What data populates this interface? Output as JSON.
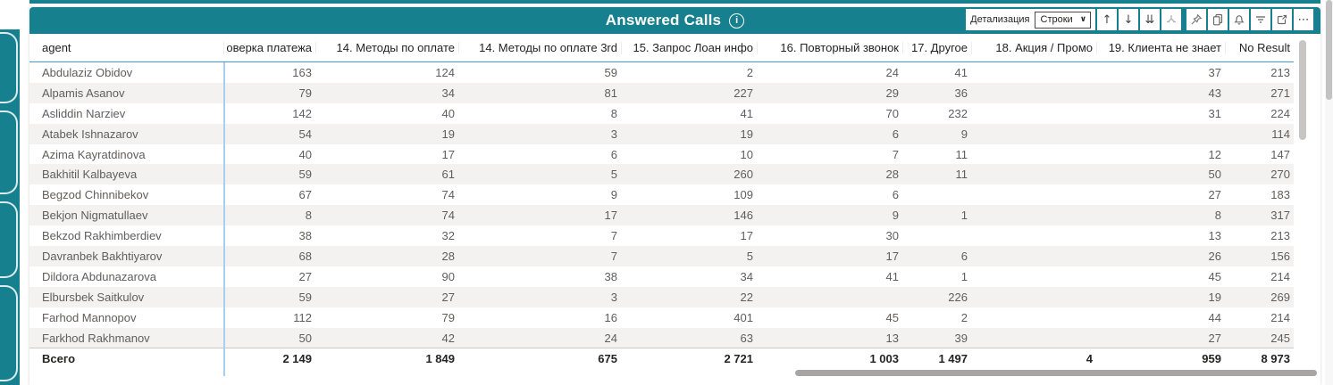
{
  "colors": {
    "teal": "#17808E",
    "header_underline_blue": "#3D9BDC",
    "frozen_column_divider_blue": "#A9CFEC",
    "alt_row": "#F3F2F1"
  },
  "header": {
    "title": "Answered Calls",
    "info_icon": "i",
    "toolbar": {
      "detail_label": "Детализация",
      "detail_value": "Строки",
      "caret": "∨",
      "icons": {
        "drill_up": "↑",
        "drill_down": "↓",
        "drill_next": "⇊",
        "more": "⋯"
      }
    }
  },
  "table": {
    "columns": [
      "agent",
      "оверка платежа",
      "14. Методы по оплате",
      "14. Методы по оплате 3rd",
      "15. Запрос Лоан инфо",
      "16. Повторный звонок",
      "17. Другое",
      "18. Акция / Промо",
      "19. Клиента не знает",
      "No Result"
    ],
    "rows": [
      {
        "agent": "Abdulaziz Obidov",
        "values": [
          "163",
          "124",
          "59",
          "2",
          "24",
          "41",
          "",
          "37",
          "213"
        ]
      },
      {
        "agent": "Alpamis Asanov",
        "values": [
          "79",
          "34",
          "81",
          "227",
          "29",
          "36",
          "",
          "43",
          "271"
        ]
      },
      {
        "agent": "Asliddin Narziev",
        "values": [
          "142",
          "40",
          "8",
          "41",
          "70",
          "232",
          "",
          "31",
          "224"
        ]
      },
      {
        "agent": "Atabek Ishnazarov",
        "values": [
          "54",
          "19",
          "3",
          "19",
          "6",
          "9",
          "",
          "",
          "114"
        ]
      },
      {
        "agent": "Azima Kayratdinova",
        "values": [
          "40",
          "17",
          "6",
          "10",
          "7",
          "11",
          "",
          "12",
          "147"
        ]
      },
      {
        "agent": "Bakhitil Kalbayeva",
        "values": [
          "59",
          "61",
          "5",
          "260",
          "28",
          "11",
          "",
          "50",
          "270"
        ]
      },
      {
        "agent": "Begzod Chinnibekov",
        "values": [
          "67",
          "74",
          "9",
          "109",
          "6",
          "",
          "",
          "27",
          "183"
        ]
      },
      {
        "agent": "Bekjon Nigmatullaev",
        "values": [
          "8",
          "74",
          "17",
          "146",
          "9",
          "1",
          "",
          "8",
          "317"
        ]
      },
      {
        "agent": "Bekzod Rakhimberdiev",
        "values": [
          "38",
          "32",
          "7",
          "17",
          "30",
          "",
          "",
          "13",
          "213"
        ]
      },
      {
        "agent": "Davranbek Bakhtiyarov",
        "values": [
          "68",
          "28",
          "7",
          "5",
          "17",
          "6",
          "",
          "26",
          "156"
        ]
      },
      {
        "agent": "Dildora Abdunazarova",
        "values": [
          "27",
          "90",
          "38",
          "34",
          "41",
          "1",
          "",
          "45",
          "214"
        ]
      },
      {
        "agent": "Elbursbek Saitkulov",
        "values": [
          "59",
          "27",
          "3",
          "22",
          "",
          "226",
          "",
          "19",
          "269"
        ]
      },
      {
        "agent": "Farhod Mannopov",
        "values": [
          "112",
          "79",
          "16",
          "401",
          "45",
          "2",
          "",
          "44",
          "214"
        ]
      },
      {
        "agent": "Farkhod Rakhmanov",
        "values": [
          "50",
          "42",
          "24",
          "63",
          "13",
          "39",
          "",
          "27",
          "245"
        ]
      }
    ],
    "total": {
      "label": "Всего",
      "values": [
        "2 149",
        "1 849",
        "675",
        "2 721",
        "1 003",
        "1 497",
        "4",
        "959",
        "8 973"
      ]
    }
  }
}
